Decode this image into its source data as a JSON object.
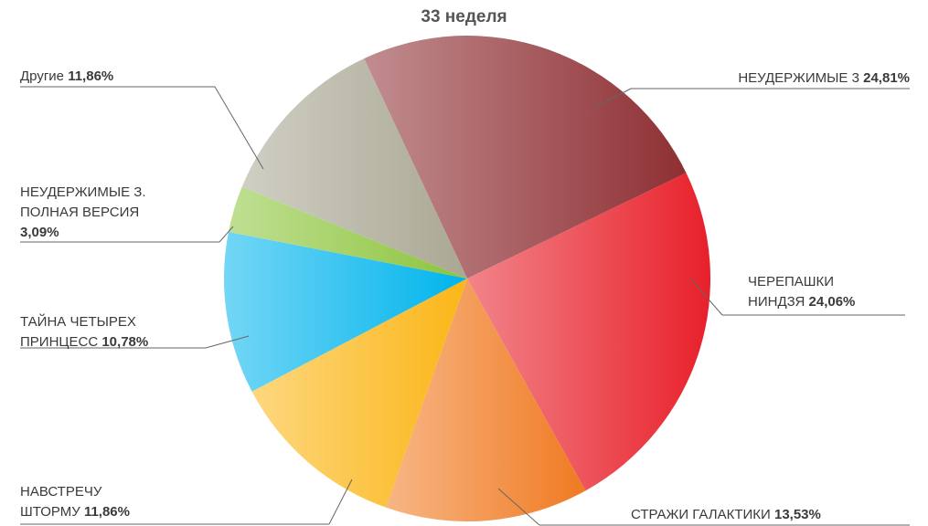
{
  "chart_data": {
    "type": "pie",
    "title": "33 неделя",
    "categories": [
      "НЕУДЕРЖИМЫЕ 3",
      "ЧЕРЕПАШКИ НИНДЗЯ",
      "СТРАЖИ ГАЛАКТИКИ",
      "НАВСТРЕЧУ ШТОРМУ",
      "ТАЙНА ЧЕТЫРЕХ ПРИНЦЕСС",
      "НЕУДЕРЖИМЫЕ З. ПОЛНАЯ ВЕРСИЯ",
      "Другие"
    ],
    "values": [
      24.81,
      24.06,
      13.53,
      11.86,
      10.78,
      3.09,
      11.86
    ],
    "value_labels": [
      "24,81%",
      "24,06%",
      "13,53%",
      "11,86%",
      "10,78%",
      "3,09%",
      "11,86%"
    ],
    "colors": [
      "#8e2f33",
      "#e8202a",
      "#f07a22",
      "#fbb617",
      "#00b4ec",
      "#8cc43c",
      "#aaa793"
    ]
  }
}
